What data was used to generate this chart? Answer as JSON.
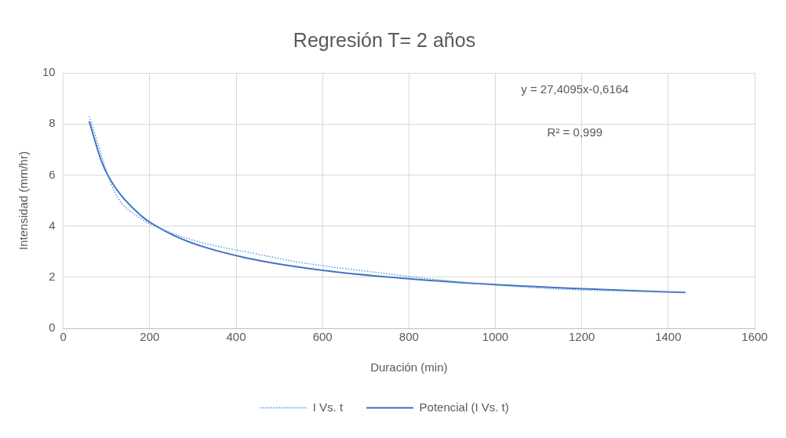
{
  "chart_data": {
    "type": "line",
    "title": "Regresión T= 2 años",
    "xlabel": "Duración (min)",
    "ylabel": "Intensidad (mm/hr)",
    "xlim": [
      0,
      1600
    ],
    "xticks": [
      0,
      200,
      400,
      600,
      800,
      1000,
      1200,
      1400,
      1600
    ],
    "ylim": [
      0,
      10
    ],
    "yticks": [
      0,
      2,
      4,
      6,
      8,
      10
    ],
    "grid": true,
    "legend": "bottom",
    "marker": "none",
    "series": [
      {
        "name": "I Vs. t",
        "color": "#5b9bd5",
        "line_style": "dotted",
        "x": [
          60,
          120,
          180,
          240,
          300,
          360,
          420,
          480,
          540,
          600,
          720,
          840,
          960,
          1080,
          1200,
          1320,
          1440
        ],
        "values": [
          8.3,
          5.3,
          4.3,
          3.8,
          3.45,
          3.2,
          3.0,
          2.8,
          2.6,
          2.45,
          2.2,
          1.95,
          1.75,
          1.6,
          1.5,
          1.45,
          1.4
        ]
      },
      {
        "name": "Potencial (I Vs. t)",
        "color": "#4472c4",
        "line_style": "solid",
        "x": [
          60,
          90,
          120,
          180,
          240,
          300,
          420,
          600,
          800,
          1000,
          1200,
          1440
        ],
        "values": [
          8.1,
          6.47,
          5.52,
          4.41,
          3.77,
          3.33,
          2.77,
          2.27,
          1.94,
          1.71,
          1.55,
          1.4
        ]
      }
    ],
    "annotations": [
      "y = 27,4095x-0,6164",
      "R² = 0,999"
    ]
  }
}
